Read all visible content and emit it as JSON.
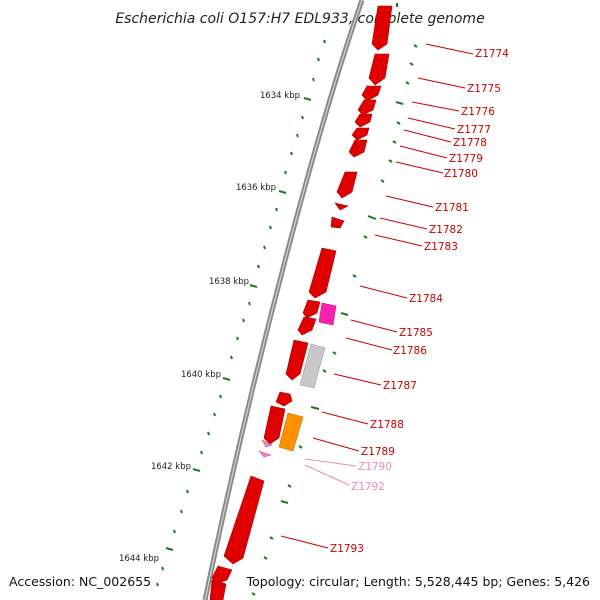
{
  "title": "Escherichia coli O157:H7 EDL933, complete genome",
  "accession": "Accession: NC_002655",
  "topology": "Topology: circular; Length: 5,528,445 bp; Genes: 5,426",
  "colors": {
    "backbone": "#8c8c8c",
    "gene": "#e00000",
    "gene_magenta": "#ff20b0",
    "gene_gray": "#c8c8c8",
    "gene_orange": "#ff9000",
    "gene_pink": "#f080c0",
    "label_default": "#cc0000",
    "label_pink": "#f088c0",
    "tick": "#1e7a1e"
  },
  "ticks": [
    {
      "label": "1634 kbp"
    },
    {
      "label": "1636 kbp"
    },
    {
      "label": "1638 kbp"
    },
    {
      "label": "1640 kbp"
    },
    {
      "label": "1642 kbp"
    },
    {
      "label": "1644 kbp"
    }
  ],
  "gene_labels": [
    {
      "text": "Z1774",
      "color": "red"
    },
    {
      "text": "Z1775",
      "color": "red"
    },
    {
      "text": "Z1776",
      "color": "red"
    },
    {
      "text": "Z1777",
      "color": "red"
    },
    {
      "text": "Z1778",
      "color": "red"
    },
    {
      "text": "Z1779",
      "color": "red"
    },
    {
      "text": "Z1780",
      "color": "red"
    },
    {
      "text": "Z1781",
      "color": "red"
    },
    {
      "text": "Z1782",
      "color": "red"
    },
    {
      "text": "Z1783",
      "color": "red"
    },
    {
      "text": "Z1784",
      "color": "red"
    },
    {
      "text": "Z1785",
      "color": "red"
    },
    {
      "text": "Z1786",
      "color": "red"
    },
    {
      "text": "Z1787",
      "color": "red"
    },
    {
      "text": "Z1788",
      "color": "red"
    },
    {
      "text": "Z1789",
      "color": "red"
    },
    {
      "text": "Z1790",
      "color": "pink"
    },
    {
      "text": "Z1792",
      "color": "pink"
    },
    {
      "text": "Z1793",
      "color": "red"
    }
  ]
}
